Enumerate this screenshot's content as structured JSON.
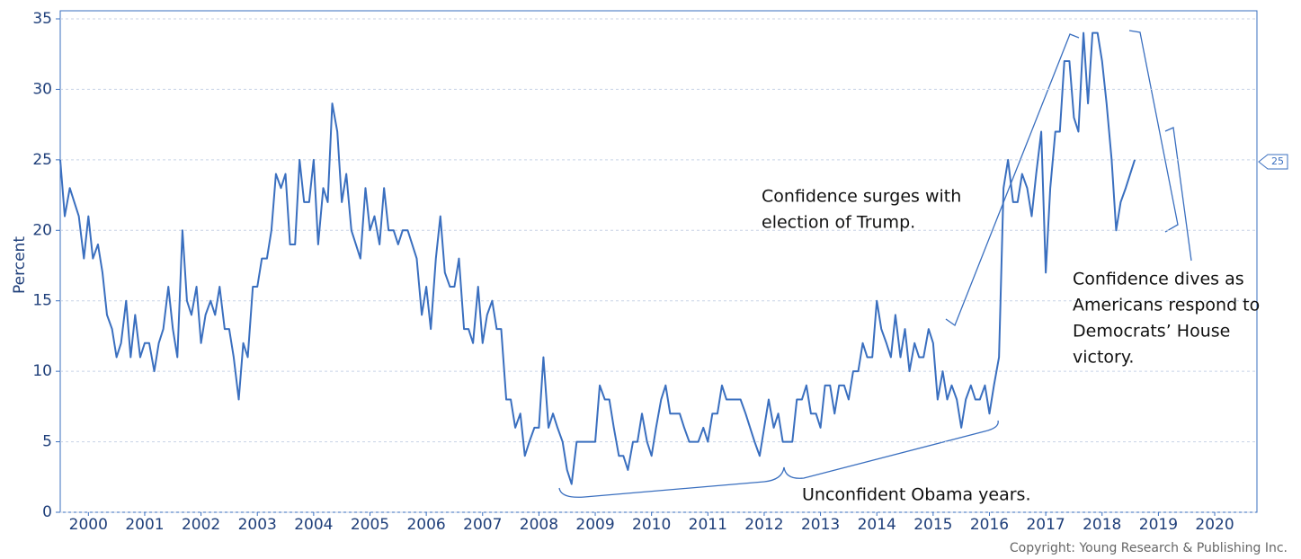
{
  "chart_data": {
    "type": "line",
    "y_label": "Percent",
    "copyright": "Copyright: Young Research & Publishing Inc.",
    "last_value_tag": 25,
    "annotations": [
      {
        "lines": [
          "Confidence surges with",
          "election of Trump."
        ]
      },
      {
        "lines": [
          "Confidence dives as",
          "Americans respond to",
          "Democrats’ House",
          "victory."
        ]
      },
      {
        "lines": [
          "Unconfident Obama years."
        ]
      }
    ],
    "xlim": [
      2000,
      2021.25
    ],
    "ylim": [
      0,
      35
    ],
    "yticks": [
      0,
      5,
      10,
      15,
      20,
      25,
      30,
      35
    ],
    "xticks": [
      {
        "value": 2000.5,
        "label": "2000"
      },
      {
        "value": 2001.5,
        "label": "2001"
      },
      {
        "value": 2002.5,
        "label": "2002"
      },
      {
        "value": 2003.5,
        "label": "2003"
      },
      {
        "value": 2004.5,
        "label": "2004"
      },
      {
        "value": 2005.5,
        "label": "2005"
      },
      {
        "value": 2006.5,
        "label": "2006"
      },
      {
        "value": 2007.5,
        "label": "2007"
      },
      {
        "value": 2008.5,
        "label": "2008"
      },
      {
        "value": 2009.5,
        "label": "2009"
      },
      {
        "value": 2010.5,
        "label": "2010"
      },
      {
        "value": 2011.5,
        "label": "2011"
      },
      {
        "value": 2012.5,
        "label": "2012"
      },
      {
        "value": 2013.5,
        "label": "2013"
      },
      {
        "value": 2014.5,
        "label": "2014"
      },
      {
        "value": 2015.5,
        "label": "2015"
      },
      {
        "value": 2016.5,
        "label": "2016"
      },
      {
        "value": 2017.5,
        "label": "2017"
      },
      {
        "value": 2018.5,
        "label": "2018"
      },
      {
        "value": 2019.5,
        "label": "2019"
      },
      {
        "value": 2020.5,
        "label": "2020"
      }
    ],
    "grid": true,
    "x": [
      2000,
      2000.08,
      2000.17,
      2000.25,
      2000.33,
      2000.42,
      2000.5,
      2000.58,
      2000.67,
      2000.75,
      2000.83,
      2000.92,
      2001,
      2001.08,
      2001.17,
      2001.25,
      2001.33,
      2001.42,
      2001.5,
      2001.58,
      2001.67,
      2001.75,
      2001.83,
      2001.92,
      2002,
      2002.08,
      2002.17,
      2002.25,
      2002.33,
      2002.42,
      2002.5,
      2002.58,
      2002.67,
      2002.75,
      2002.83,
      2002.92,
      2003,
      2003.08,
      2003.17,
      2003.25,
      2003.33,
      2003.42,
      2003.5,
      2003.58,
      2003.67,
      2003.75,
      2003.83,
      2003.92,
      2004,
      2004.08,
      2004.17,
      2004.25,
      2004.33,
      2004.42,
      2004.5,
      2004.58,
      2004.67,
      2004.75,
      2004.83,
      2004.92,
      2005,
      2005.08,
      2005.17,
      2005.25,
      2005.33,
      2005.42,
      2005.5,
      2005.58,
      2005.67,
      2005.75,
      2005.83,
      2005.92,
      2006,
      2006.08,
      2006.17,
      2006.25,
      2006.33,
      2006.42,
      2006.5,
      2006.58,
      2006.67,
      2006.75,
      2006.83,
      2006.92,
      2007,
      2007.08,
      2007.17,
      2007.25,
      2007.33,
      2007.42,
      2007.5,
      2007.58,
      2007.67,
      2007.75,
      2007.83,
      2007.92,
      2008,
      2008.08,
      2008.17,
      2008.25,
      2008.33,
      2008.42,
      2008.5,
      2008.58,
      2008.67,
      2008.75,
      2008.83,
      2008.92,
      2009,
      2009.08,
      2009.17,
      2009.25,
      2009.33,
      2009.42,
      2009.5,
      2009.58,
      2009.67,
      2009.75,
      2009.83,
      2009.92,
      2010,
      2010.08,
      2010.17,
      2010.25,
      2010.33,
      2010.42,
      2010.5,
      2010.58,
      2010.67,
      2010.75,
      2010.83,
      2010.92,
      2011,
      2011.08,
      2011.17,
      2011.25,
      2011.33,
      2011.42,
      2011.5,
      2011.58,
      2011.67,
      2011.75,
      2011.83,
      2011.92,
      2012,
      2012.08,
      2012.17,
      2012.25,
      2012.33,
      2012.42,
      2012.5,
      2012.58,
      2012.67,
      2012.75,
      2012.83,
      2012.92,
      2013,
      2013.08,
      2013.17,
      2013.25,
      2013.33,
      2013.42,
      2013.5,
      2013.58,
      2013.67,
      2013.75,
      2013.83,
      2013.92,
      2014,
      2014.08,
      2014.17,
      2014.25,
      2014.33,
      2014.42,
      2014.5,
      2014.58,
      2014.67,
      2014.75,
      2014.83,
      2014.92,
      2015,
      2015.08,
      2015.17,
      2015.25,
      2015.33,
      2015.42,
      2015.5,
      2015.58,
      2015.67,
      2015.75,
      2015.83,
      2015.92,
      2016,
      2016.08,
      2016.17,
      2016.25,
      2016.33,
      2016.42,
      2016.5,
      2016.58,
      2016.67,
      2016.75,
      2016.83,
      2016.92,
      2017,
      2017.08,
      2017.17,
      2017.25,
      2017.33,
      2017.42,
      2017.5,
      2017.58,
      2017.67,
      2017.75,
      2017.83,
      2017.92,
      2018,
      2018.08,
      2018.17,
      2018.25,
      2018.33,
      2018.42,
      2018.5,
      2018.58,
      2018.67,
      2018.75,
      2018.83,
      2018.92,
      2019.08
    ],
    "series": [
      {
        "name": "Percent",
        "color": "#3a6fbf",
        "values": [
          25,
          21,
          23,
          22,
          21,
          18,
          21,
          18,
          19,
          17,
          14,
          13,
          11,
          12,
          15,
          11,
          14,
          11,
          12,
          12,
          10,
          12,
          13,
          16,
          13,
          11,
          20,
          15,
          14,
          16,
          12,
          14,
          15,
          14,
          16,
          13,
          13,
          11,
          8,
          12,
          11,
          16,
          16,
          18,
          18,
          20,
          24,
          23,
          24,
          19,
          19,
          25,
          22,
          22,
          25,
          19,
          23,
          22,
          29,
          27,
          22,
          24,
          20,
          19,
          18,
          23,
          20,
          21,
          19,
          23,
          20,
          20,
          19,
          20,
          20,
          19,
          18,
          14,
          16,
          13,
          18,
          21,
          17,
          16,
          16,
          18,
          13,
          13,
          12,
          16,
          12,
          14,
          15,
          13,
          13,
          8,
          8,
          6,
          7,
          4,
          5,
          6,
          6,
          11,
          6,
          7,
          6,
          5,
          3,
          2,
          5,
          5,
          5,
          5,
          5,
          9,
          8,
          8,
          6,
          4,
          4,
          3,
          5,
          5,
          7,
          5,
          4,
          6,
          8,
          9,
          7,
          7,
          7,
          6,
          5,
          5,
          5,
          6,
          5,
          7,
          7,
          9,
          8,
          8,
          8,
          8,
          7,
          6,
          5,
          4,
          6,
          8,
          6,
          7,
          5,
          5,
          5,
          8,
          8,
          9,
          7,
          7,
          6,
          9,
          9,
          7,
          9,
          9,
          8,
          10,
          10,
          12,
          11,
          11,
          15,
          13,
          12,
          11,
          14,
          11,
          13,
          10,
          12,
          11,
          11,
          13,
          12,
          8,
          10,
          8,
          9,
          8,
          6,
          8,
          9,
          8,
          8,
          9,
          7,
          9,
          11,
          23,
          25,
          22,
          22,
          24,
          23,
          21,
          24,
          27,
          17,
          23,
          27,
          27,
          32,
          32,
          28,
          27,
          34,
          29,
          34,
          34,
          32,
          29,
          25,
          20,
          22,
          23,
          25
        ]
      }
    ]
  }
}
